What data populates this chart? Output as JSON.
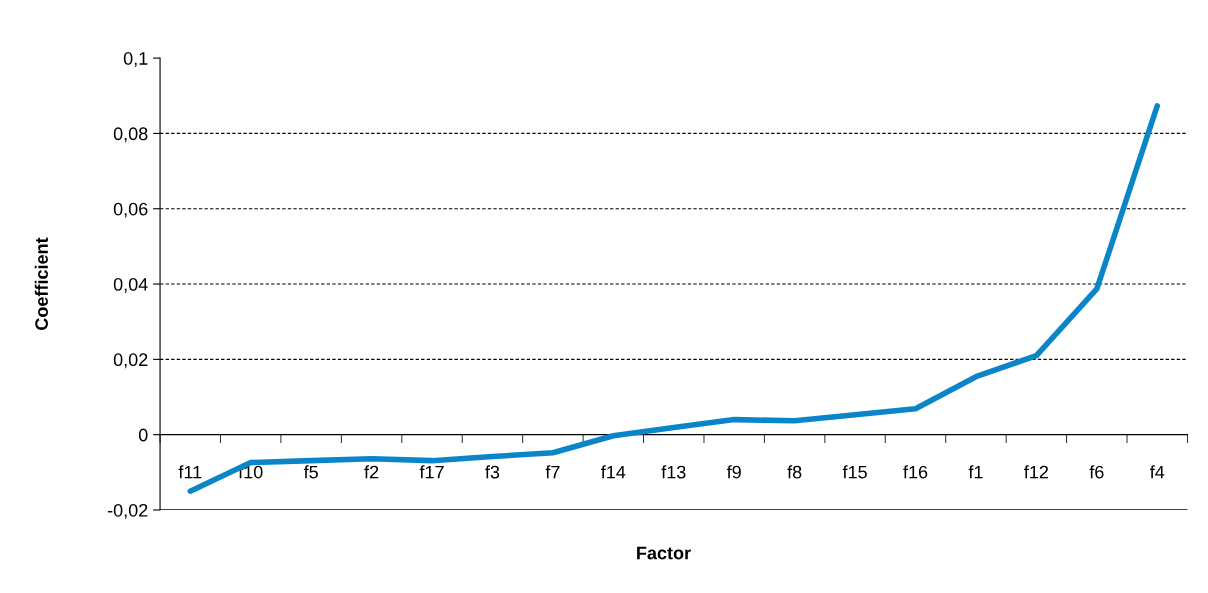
{
  "chart_data": {
    "type": "line",
    "xlabel": "Factor",
    "ylabel": "Coefficient",
    "categories": [
      "f11",
      "f10",
      "f5",
      "f2",
      "f17",
      "f3",
      "f7",
      "f14",
      "f13",
      "f9",
      "f8",
      "f15",
      "f16",
      "f1",
      "f12",
      "f6",
      "f4"
    ],
    "series": [
      {
        "color": "#0a85c8",
        "values": [
          -0.015,
          -0.0074,
          -0.0069,
          -0.0064,
          -0.0069,
          -0.0058,
          -0.0048,
          -0.0003,
          0.0019,
          0.004,
          0.0037,
          0.0053,
          0.0069,
          0.0154,
          0.021,
          0.0387,
          0.0873
        ]
      }
    ],
    "ylim": [
      -0.02,
      0.1
    ],
    "yticks": [
      {
        "value": -0.02,
        "label": "-0,02"
      },
      {
        "value": 0,
        "label": "0"
      },
      {
        "value": 0.02,
        "label": "0,02"
      },
      {
        "value": 0.04,
        "label": "0,04"
      },
      {
        "value": 0.06,
        "label": "0,06"
      },
      {
        "value": 0.08,
        "label": "0,08"
      },
      {
        "value": 0.1,
        "label": "0,1"
      }
    ],
    "grid": "y",
    "marker": "none",
    "line_style": "solid",
    "legend": false
  }
}
